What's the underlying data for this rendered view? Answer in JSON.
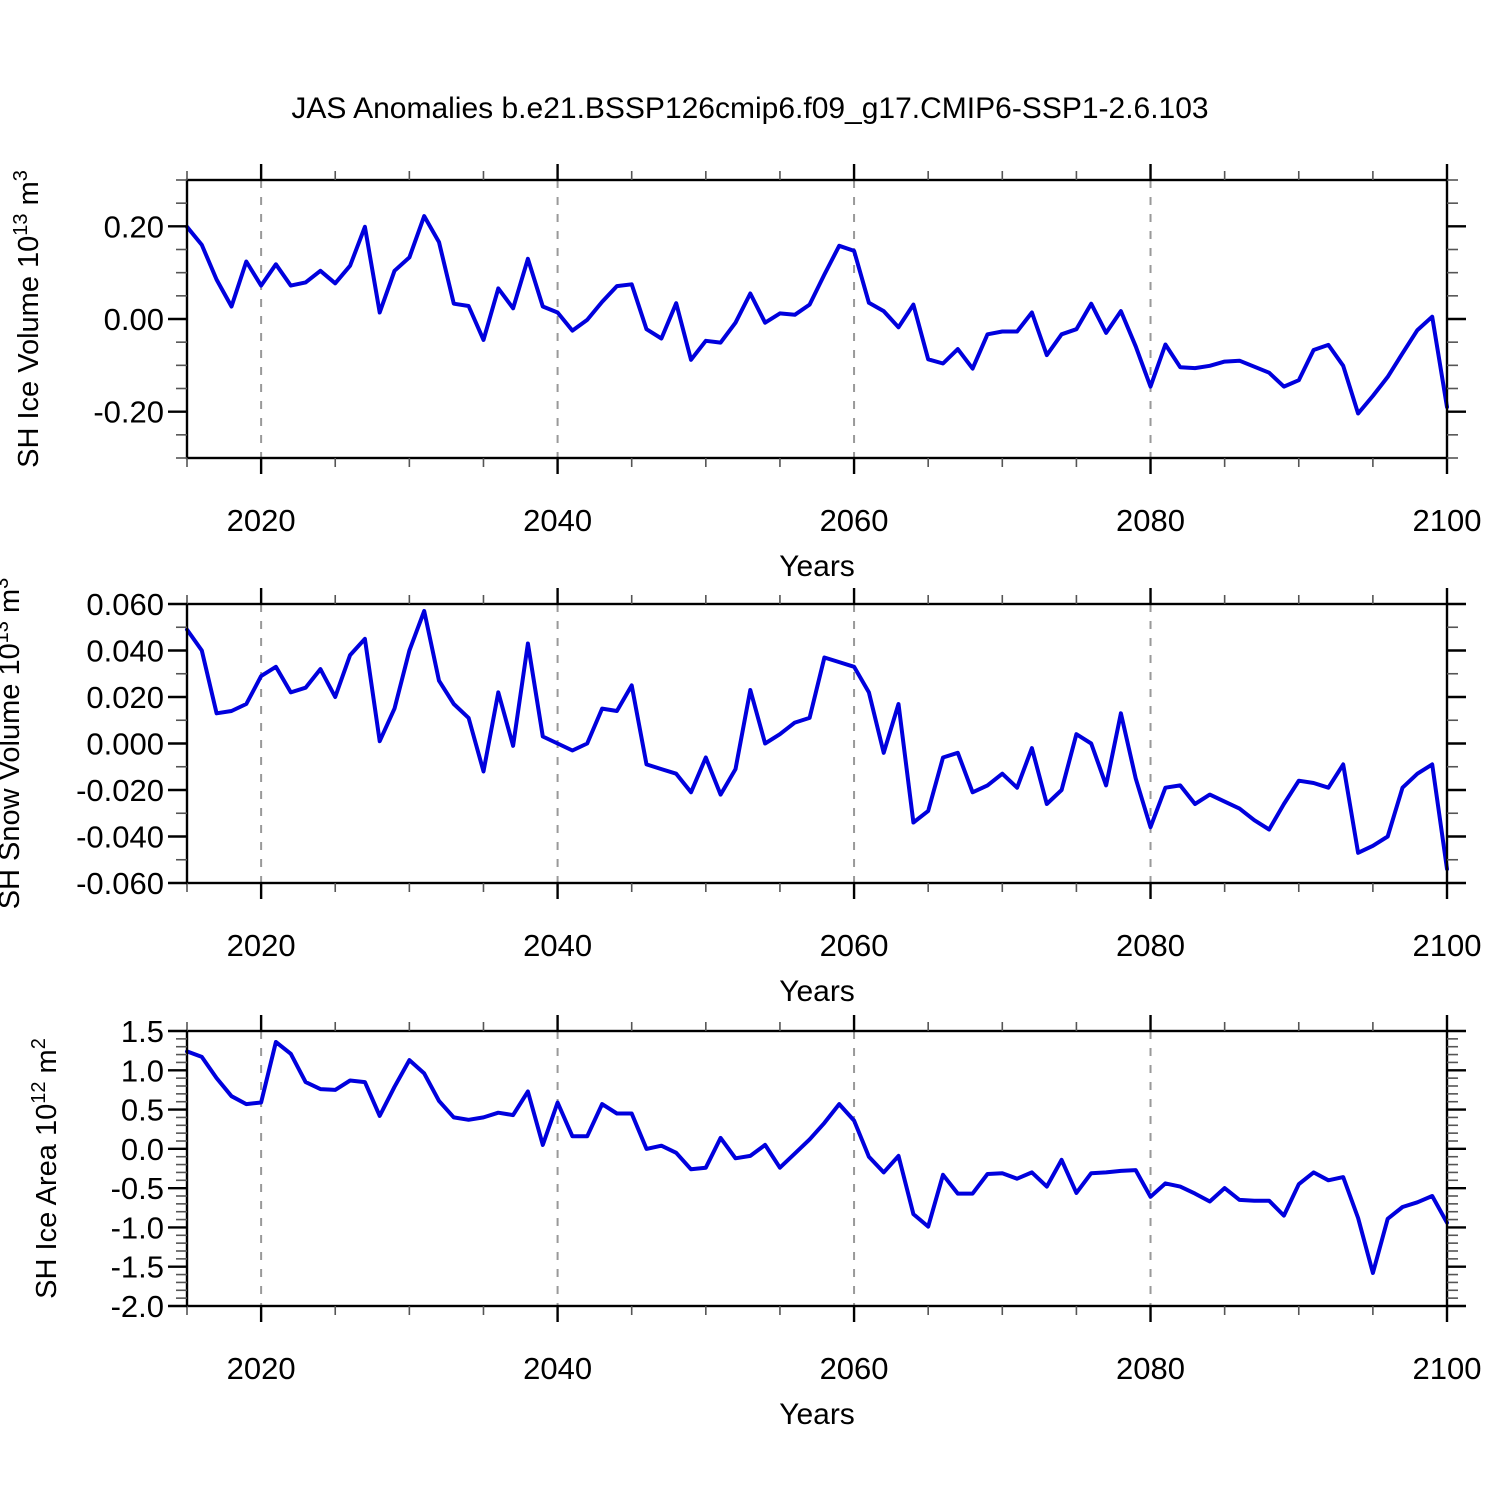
{
  "page_title": "JAS Anomalies b.e21.BSSP126cmip6.f09_g17.CMIP6-SSP1-2.6.103",
  "line_color": "#0000dd",
  "grid_color": "#999999",
  "frame_color": "#000000",
  "x_axis": {
    "label": "Years",
    "range": [
      2015,
      2100
    ],
    "ticks": [
      2020,
      2040,
      2060,
      2080,
      2100
    ],
    "tick_labels": [
      "2020",
      "2040",
      "2060",
      "2080",
      "2100"
    ],
    "minor_step": 5,
    "gridlines_at": [
      2020,
      2040,
      2060,
      2080
    ]
  },
  "years": [
    2015,
    2016,
    2017,
    2018,
    2019,
    2020,
    2021,
    2022,
    2023,
    2024,
    2025,
    2026,
    2027,
    2028,
    2029,
    2030,
    2031,
    2032,
    2033,
    2034,
    2035,
    2036,
    2037,
    2038,
    2039,
    2040,
    2041,
    2042,
    2043,
    2044,
    2045,
    2046,
    2047,
    2048,
    2049,
    2050,
    2051,
    2052,
    2053,
    2054,
    2055,
    2056,
    2057,
    2058,
    2059,
    2060,
    2061,
    2062,
    2063,
    2064,
    2065,
    2066,
    2067,
    2068,
    2069,
    2070,
    2071,
    2072,
    2073,
    2074,
    2075,
    2076,
    2077,
    2078,
    2079,
    2080,
    2081,
    2082,
    2083,
    2084,
    2085,
    2086,
    2087,
    2088,
    2089,
    2090,
    2091,
    2092,
    2093,
    2094,
    2095,
    2096,
    2097,
    2098,
    2099,
    2100
  ],
  "chart_data": [
    {
      "type": "line",
      "title": "",
      "xlabel": "Years",
      "ylabel": "SH Ice Volume 10^13 m^3",
      "ylabel_segments": [
        {
          "t": "SH Ice Volume 10"
        },
        {
          "t": "13",
          "sup": true
        },
        {
          "t": " m"
        },
        {
          "t": "3",
          "sup": true
        }
      ],
      "ylim": [
        -0.3,
        0.3
      ],
      "yticks": [
        0.2,
        0.0,
        -0.2
      ],
      "ytick_labels": [
        "0.20",
        "0.00",
        "-0.20"
      ],
      "y_minor_step": 0.05,
      "grid": "x-dashed",
      "legend": "none",
      "values": [
        0.199,
        0.16,
        0.085,
        0.027,
        0.124,
        0.072,
        0.118,
        0.072,
        0.079,
        0.104,
        0.077,
        0.115,
        0.199,
        0.014,
        0.104,
        0.133,
        0.222,
        0.166,
        0.033,
        0.028,
        -0.045,
        0.066,
        0.023,
        0.13,
        0.027,
        0.014,
        -0.025,
        -0.002,
        0.037,
        0.071,
        0.075,
        -0.022,
        -0.042,
        0.034,
        -0.088,
        -0.047,
        -0.051,
        -0.008,
        0.055,
        -0.008,
        0.012,
        0.009,
        0.031,
        0.096,
        0.158,
        0.147,
        0.035,
        0.017,
        -0.018,
        0.031,
        -0.087,
        -0.096,
        -0.065,
        -0.107,
        -0.033,
        -0.027,
        -0.027,
        0.014,
        -0.078,
        -0.033,
        -0.022,
        0.033,
        -0.03,
        0.017,
        -0.059,
        -0.146,
        -0.055,
        -0.104,
        -0.106,
        -0.101,
        -0.092,
        -0.09,
        -0.103,
        -0.116,
        -0.146,
        -0.132,
        -0.067,
        -0.056,
        -0.101,
        -0.204,
        -0.166,
        -0.125,
        -0.074,
        -0.024,
        0.005,
        -0.19
      ]
    },
    {
      "type": "line",
      "title": "",
      "xlabel": "Years",
      "ylabel": "SH Snow Volume 10^13 m^3",
      "ylabel_segments": [
        {
          "t": "SH Snow Volume 10"
        },
        {
          "t": "13",
          "sup": true
        },
        {
          "t": " m"
        },
        {
          "t": "3",
          "sup": true
        }
      ],
      "ylim": [
        -0.06,
        0.06
      ],
      "yticks": [
        0.06,
        0.04,
        0.02,
        0.0,
        -0.02,
        -0.04,
        -0.06
      ],
      "ytick_labels": [
        "0.060",
        "0.040",
        "0.020",
        "0.000",
        "-0.020",
        "-0.040",
        "-0.060"
      ],
      "y_minor_step": 0.01,
      "grid": "x-dashed",
      "legend": "none",
      "values": [
        0.049,
        0.04,
        0.013,
        0.014,
        0.017,
        0.029,
        0.033,
        0.022,
        0.024,
        0.032,
        0.02,
        0.038,
        0.045,
        0.001,
        0.015,
        0.04,
        0.057,
        0.027,
        0.017,
        0.011,
        -0.012,
        0.022,
        -0.001,
        0.043,
        0.003,
        0.0,
        -0.003,
        0.0,
        0.015,
        0.014,
        0.025,
        -0.009,
        -0.011,
        -0.013,
        -0.021,
        -0.006,
        -0.022,
        -0.011,
        0.023,
        0.0,
        0.004,
        0.009,
        0.011,
        0.037,
        0.035,
        0.033,
        0.022,
        -0.004,
        0.017,
        -0.034,
        -0.029,
        -0.006,
        -0.004,
        -0.021,
        -0.018,
        -0.013,
        -0.019,
        -0.002,
        -0.026,
        -0.02,
        0.004,
        0.0,
        -0.018,
        0.013,
        -0.015,
        -0.036,
        -0.019,
        -0.018,
        -0.026,
        -0.022,
        -0.025,
        -0.028,
        -0.033,
        -0.037,
        -0.026,
        -0.016,
        -0.017,
        -0.019,
        -0.009,
        -0.047,
        -0.044,
        -0.04,
        -0.019,
        -0.013,
        -0.009,
        -0.054
      ]
    },
    {
      "type": "line",
      "title": "",
      "xlabel": "Years",
      "ylabel": "SH Ice Area 10^12 m^2",
      "ylabel_segments": [
        {
          "t": "SH Ice Area 10"
        },
        {
          "t": "12",
          "sup": true
        },
        {
          "t": " m"
        },
        {
          "t": "2",
          "sup": true
        }
      ],
      "ylim": [
        -2.0,
        1.5
      ],
      "yticks": [
        1.5,
        1.0,
        0.5,
        0.0,
        -0.5,
        -1.0,
        -1.5,
        -2.0
      ],
      "ytick_labels": [
        "1.5",
        "1.0",
        "0.5",
        "0.0",
        "-0.5",
        "-1.0",
        "-1.5",
        "-2.0"
      ],
      "y_minor_step": 0.1,
      "grid": "x-dashed",
      "legend": "none",
      "values": [
        1.24,
        1.17,
        0.9,
        0.67,
        0.57,
        0.59,
        1.36,
        1.21,
        0.85,
        0.76,
        0.75,
        0.87,
        0.85,
        0.42,
        0.79,
        1.13,
        0.96,
        0.61,
        0.4,
        0.37,
        0.4,
        0.46,
        0.43,
        0.73,
        0.05,
        0.59,
        0.16,
        0.16,
        0.57,
        0.45,
        0.45,
        0.0,
        0.04,
        -0.05,
        -0.26,
        -0.24,
        0.14,
        -0.12,
        -0.09,
        0.05,
        -0.24,
        -0.06,
        0.12,
        0.33,
        0.57,
        0.36,
        -0.1,
        -0.3,
        -0.09,
        -0.83,
        -0.99,
        -0.33,
        -0.57,
        -0.57,
        -0.32,
        -0.31,
        -0.38,
        -0.3,
        -0.48,
        -0.14,
        -0.56,
        -0.31,
        -0.3,
        -0.28,
        -0.27,
        -0.61,
        -0.44,
        -0.48,
        -0.57,
        -0.67,
        -0.5,
        -0.65,
        -0.66,
        -0.66,
        -0.85,
        -0.45,
        -0.3,
        -0.4,
        -0.36,
        -0.88,
        -1.58,
        -0.89,
        -0.74,
        -0.68,
        -0.6,
        -0.94
      ]
    }
  ]
}
